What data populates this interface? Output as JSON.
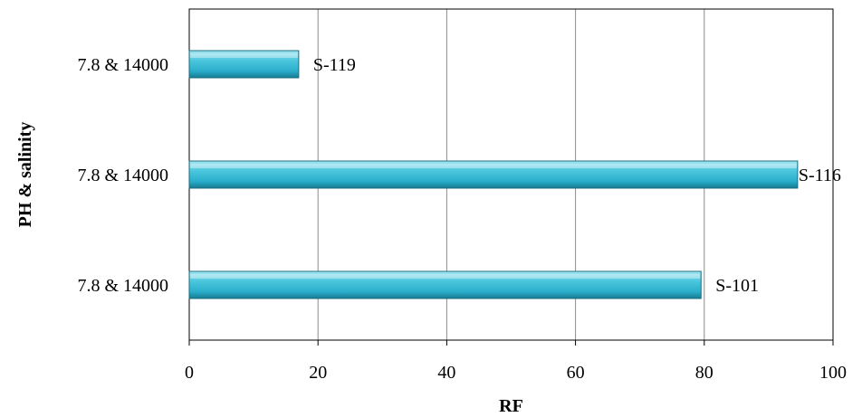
{
  "chart_data": {
    "type": "bar",
    "orientation": "horizontal",
    "categories": [
      "7.8 & 14000",
      "7.8 & 14000",
      "7.8 & 14000"
    ],
    "series": [
      {
        "values": [
          79.5,
          94.5,
          17.0
        ],
        "labels": [
          "S-101",
          "S-116",
          "S-119"
        ]
      }
    ],
    "xlabel": "RF",
    "ylabel": "PH & salinity",
    "xlim": [
      0,
      100
    ],
    "xticks": [
      0,
      20,
      40,
      60,
      80,
      100
    ],
    "grid": "vertical",
    "legend": "none",
    "bar_color": "#3bbfd8",
    "bar_edge_color": "#1a6f82"
  }
}
